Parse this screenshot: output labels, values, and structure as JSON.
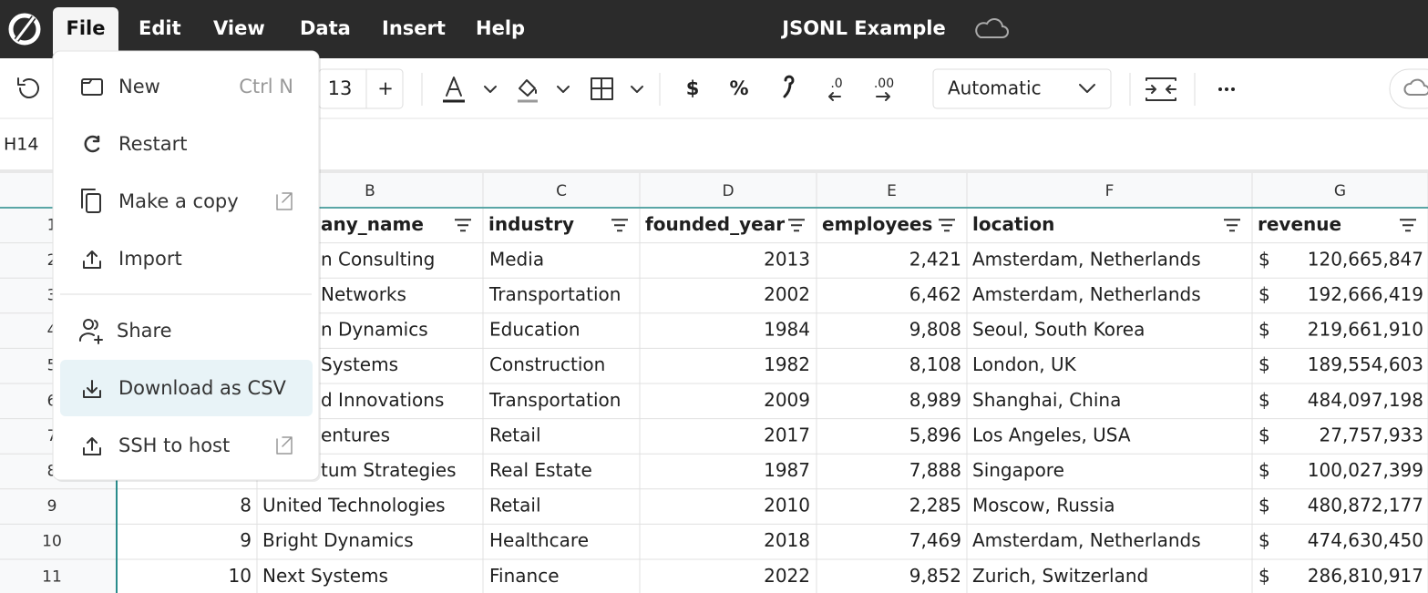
{
  "menubar": {
    "menus": [
      "File",
      "Edit",
      "View",
      "Data",
      "Insert",
      "Help"
    ],
    "document_title": "JSONL Example"
  },
  "toolbar": {
    "font_size": "13",
    "increase_font": "+",
    "currency_format": "$",
    "percent_format": "%",
    "decrease_decimals": ".0",
    "increase_decimals": ".00",
    "number_format": "Automatic"
  },
  "name_box": "H14",
  "file_menu": {
    "items": [
      {
        "label": "New",
        "shortcut": "Ctrl N"
      },
      {
        "label": "Restart"
      },
      {
        "label": "Make a copy"
      },
      {
        "label": "Import"
      },
      {
        "label": "Share"
      },
      {
        "label": "Download as CSV"
      },
      {
        "label": "SSH to host"
      }
    ]
  },
  "sheet": {
    "columns": [
      "B",
      "C",
      "D",
      "E",
      "F",
      "G"
    ],
    "currency_symbol": "$",
    "header_row": {
      "row": "1",
      "cells": [
        "any_name",
        "industry",
        "founded_year",
        "employees",
        "location",
        "revenue"
      ]
    },
    "rows": [
      {
        "row": "2",
        "name": "n Consulting",
        "industry": "Media",
        "founded_year": "2013",
        "employees": "2,421",
        "location": "Amsterdam, Netherlands",
        "revenue": "120,665,847"
      },
      {
        "row": "3",
        "name": "Networks",
        "industry": "Transportation",
        "founded_year": "2002",
        "employees": "6,462",
        "location": "Amsterdam, Netherlands",
        "revenue": "192,666,419"
      },
      {
        "row": "4",
        "name": "n Dynamics",
        "industry": "Education",
        "founded_year": "1984",
        "employees": "9,808",
        "location": "Seoul, South Korea",
        "revenue": "219,661,910"
      },
      {
        "row": "5",
        "name": "Systems",
        "industry": "Construction",
        "founded_year": "1982",
        "employees": "8,108",
        "location": "London, UK",
        "revenue": "189,554,603"
      },
      {
        "row": "6",
        "name": "d Innovations",
        "industry": "Transportation",
        "founded_year": "2009",
        "employees": "8,989",
        "location": "Shanghai, China",
        "revenue": "484,097,198"
      },
      {
        "row": "7",
        "name": "entures",
        "industry": "Retail",
        "founded_year": "2017",
        "employees": "5,896",
        "location": "Los Angeles, USA",
        "revenue": "27,757,933"
      },
      {
        "row": "8",
        "name": "tum Strategies",
        "industry": "Real Estate",
        "founded_year": "1987",
        "employees": "7,888",
        "location": "Singapore",
        "revenue": "100,027,399"
      },
      {
        "row": "9",
        "id": "8",
        "name": "United Technologies",
        "industry": "Retail",
        "founded_year": "2010",
        "employees": "2,285",
        "location": "Moscow, Russia",
        "revenue": "480,872,177"
      },
      {
        "row": "10",
        "id": "9",
        "name": "Bright Dynamics",
        "industry": "Healthcare",
        "founded_year": "2018",
        "employees": "7,469",
        "location": "Amsterdam, Netherlands",
        "revenue": "474,630,450"
      },
      {
        "row": "11",
        "id": "10",
        "name": "Next Systems",
        "industry": "Finance",
        "founded_year": "2022",
        "employees": "9,852",
        "location": "Zurich, Switzerland",
        "revenue": "286,810,917"
      }
    ]
  }
}
